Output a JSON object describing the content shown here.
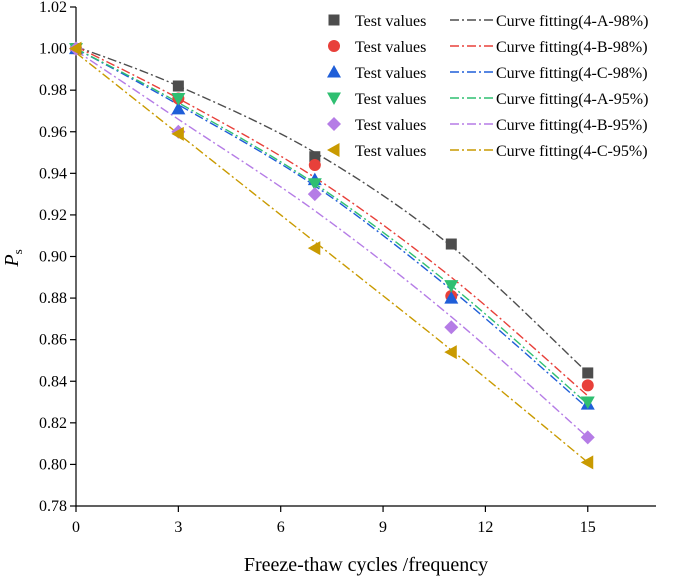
{
  "chart_data": {
    "type": "scatter",
    "title": "",
    "xlabel": "Freeze-thaw cycles /frequency",
    "ylabel_main": "P",
    "ylabel_sub": "s",
    "xlim": [
      0,
      17
    ],
    "ylim": [
      0.78,
      1.02
    ],
    "xticks": [
      0,
      3,
      6,
      9,
      12,
      15
    ],
    "yticks": [
      0.78,
      0.8,
      0.82,
      0.84,
      0.86,
      0.88,
      0.9,
      0.92,
      0.94,
      0.96,
      0.98,
      1.0,
      1.02
    ],
    "ytick_labels": [
      "0.78",
      "0.80",
      "0.82",
      "0.84",
      "0.86",
      "0.88",
      "0.90",
      "0.92",
      "0.94",
      "0.96",
      "0.98",
      "1.00",
      "1.02"
    ],
    "x": [
      0,
      3,
      7,
      11,
      15
    ],
    "legend_position": "top-right",
    "grid": false,
    "series": [
      {
        "name": "Test values",
        "fit_name": "Curve fitting(4-A-98%)",
        "marker": "square",
        "color": "#4d4d4d",
        "values": [
          1.0,
          0.982,
          0.948,
          0.906,
          0.844
        ],
        "fit": [
          1.001,
          0.982,
          0.95,
          0.905,
          0.844
        ]
      },
      {
        "name": "Test values",
        "fit_name": "Curve fitting(4-B-98%)",
        "marker": "circle",
        "color": "#e8403a",
        "values": [
          1.0,
          0.976,
          0.944,
          0.881,
          0.838
        ],
        "fit": [
          1.001,
          0.976,
          0.938,
          0.89,
          0.833
        ]
      },
      {
        "name": "Test values",
        "fit_name": "Curve fitting(4-C-98%)",
        "marker": "triangle-up",
        "color": "#1f5ed8",
        "values": [
          1.0,
          0.971,
          0.937,
          0.88,
          0.829
        ],
        "fit": [
          1.0,
          0.973,
          0.934,
          0.884,
          0.827
        ]
      },
      {
        "name": "Test values",
        "fit_name": "Curve fitting(4-A-95%)",
        "marker": "triangle-down",
        "color": "#2fbf71",
        "values": [
          1.0,
          0.976,
          0.935,
          0.886,
          0.83
        ],
        "fit": [
          1.0,
          0.974,
          0.935,
          0.886,
          0.829
        ]
      },
      {
        "name": "Test values",
        "fit_name": "Curve fitting(4-B-95%)",
        "marker": "diamond",
        "color": "#b57ce6",
        "values": [
          1.0,
          0.96,
          0.93,
          0.866,
          0.813
        ],
        "fit": [
          0.999,
          0.966,
          0.922,
          0.871,
          0.813
        ]
      },
      {
        "name": "Test values",
        "fit_name": "Curve fitting(4-C-95%)",
        "marker": "triangle-left",
        "color": "#c99a00",
        "values": [
          1.0,
          0.959,
          0.904,
          0.854,
          0.801
        ],
        "fit": [
          0.998,
          0.959,
          0.907,
          0.855,
          0.801
        ]
      }
    ]
  }
}
